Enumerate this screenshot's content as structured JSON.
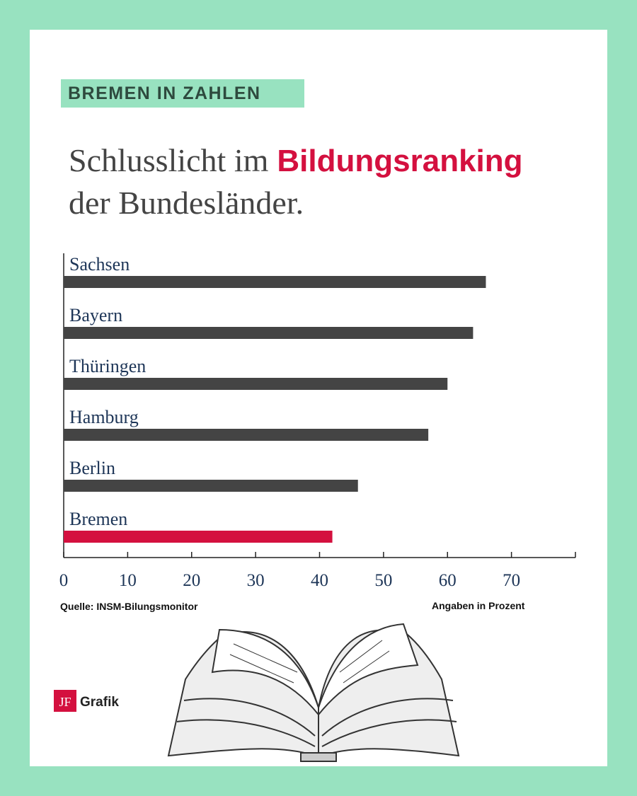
{
  "chart_data": {
    "type": "bar",
    "orientation": "horizontal",
    "kicker": "BREMEN IN ZAHLEN",
    "title": "Schlusslicht im",
    "title_highlight": "Bildungsranking",
    "title_end": "der Bundesländer.",
    "categories": [
      "Sachsen",
      "Bayern",
      "Thüringen",
      "Hamburg",
      "Berlin",
      "Bremen"
    ],
    "values": [
      66,
      64,
      60,
      57,
      46,
      42
    ],
    "colors": [
      "#444444",
      "#444444",
      "#444444",
      "#444444",
      "#444444",
      "#d4103f"
    ],
    "xlim": [
      0,
      80
    ],
    "xticks": [
      0,
      10,
      20,
      30,
      40,
      50,
      60,
      70
    ],
    "source": "Quelle: INSM-Bilungsmonitor",
    "unit_note": "Angaben in Prozent",
    "logo": "JF",
    "logo_text": "Grafik"
  }
}
